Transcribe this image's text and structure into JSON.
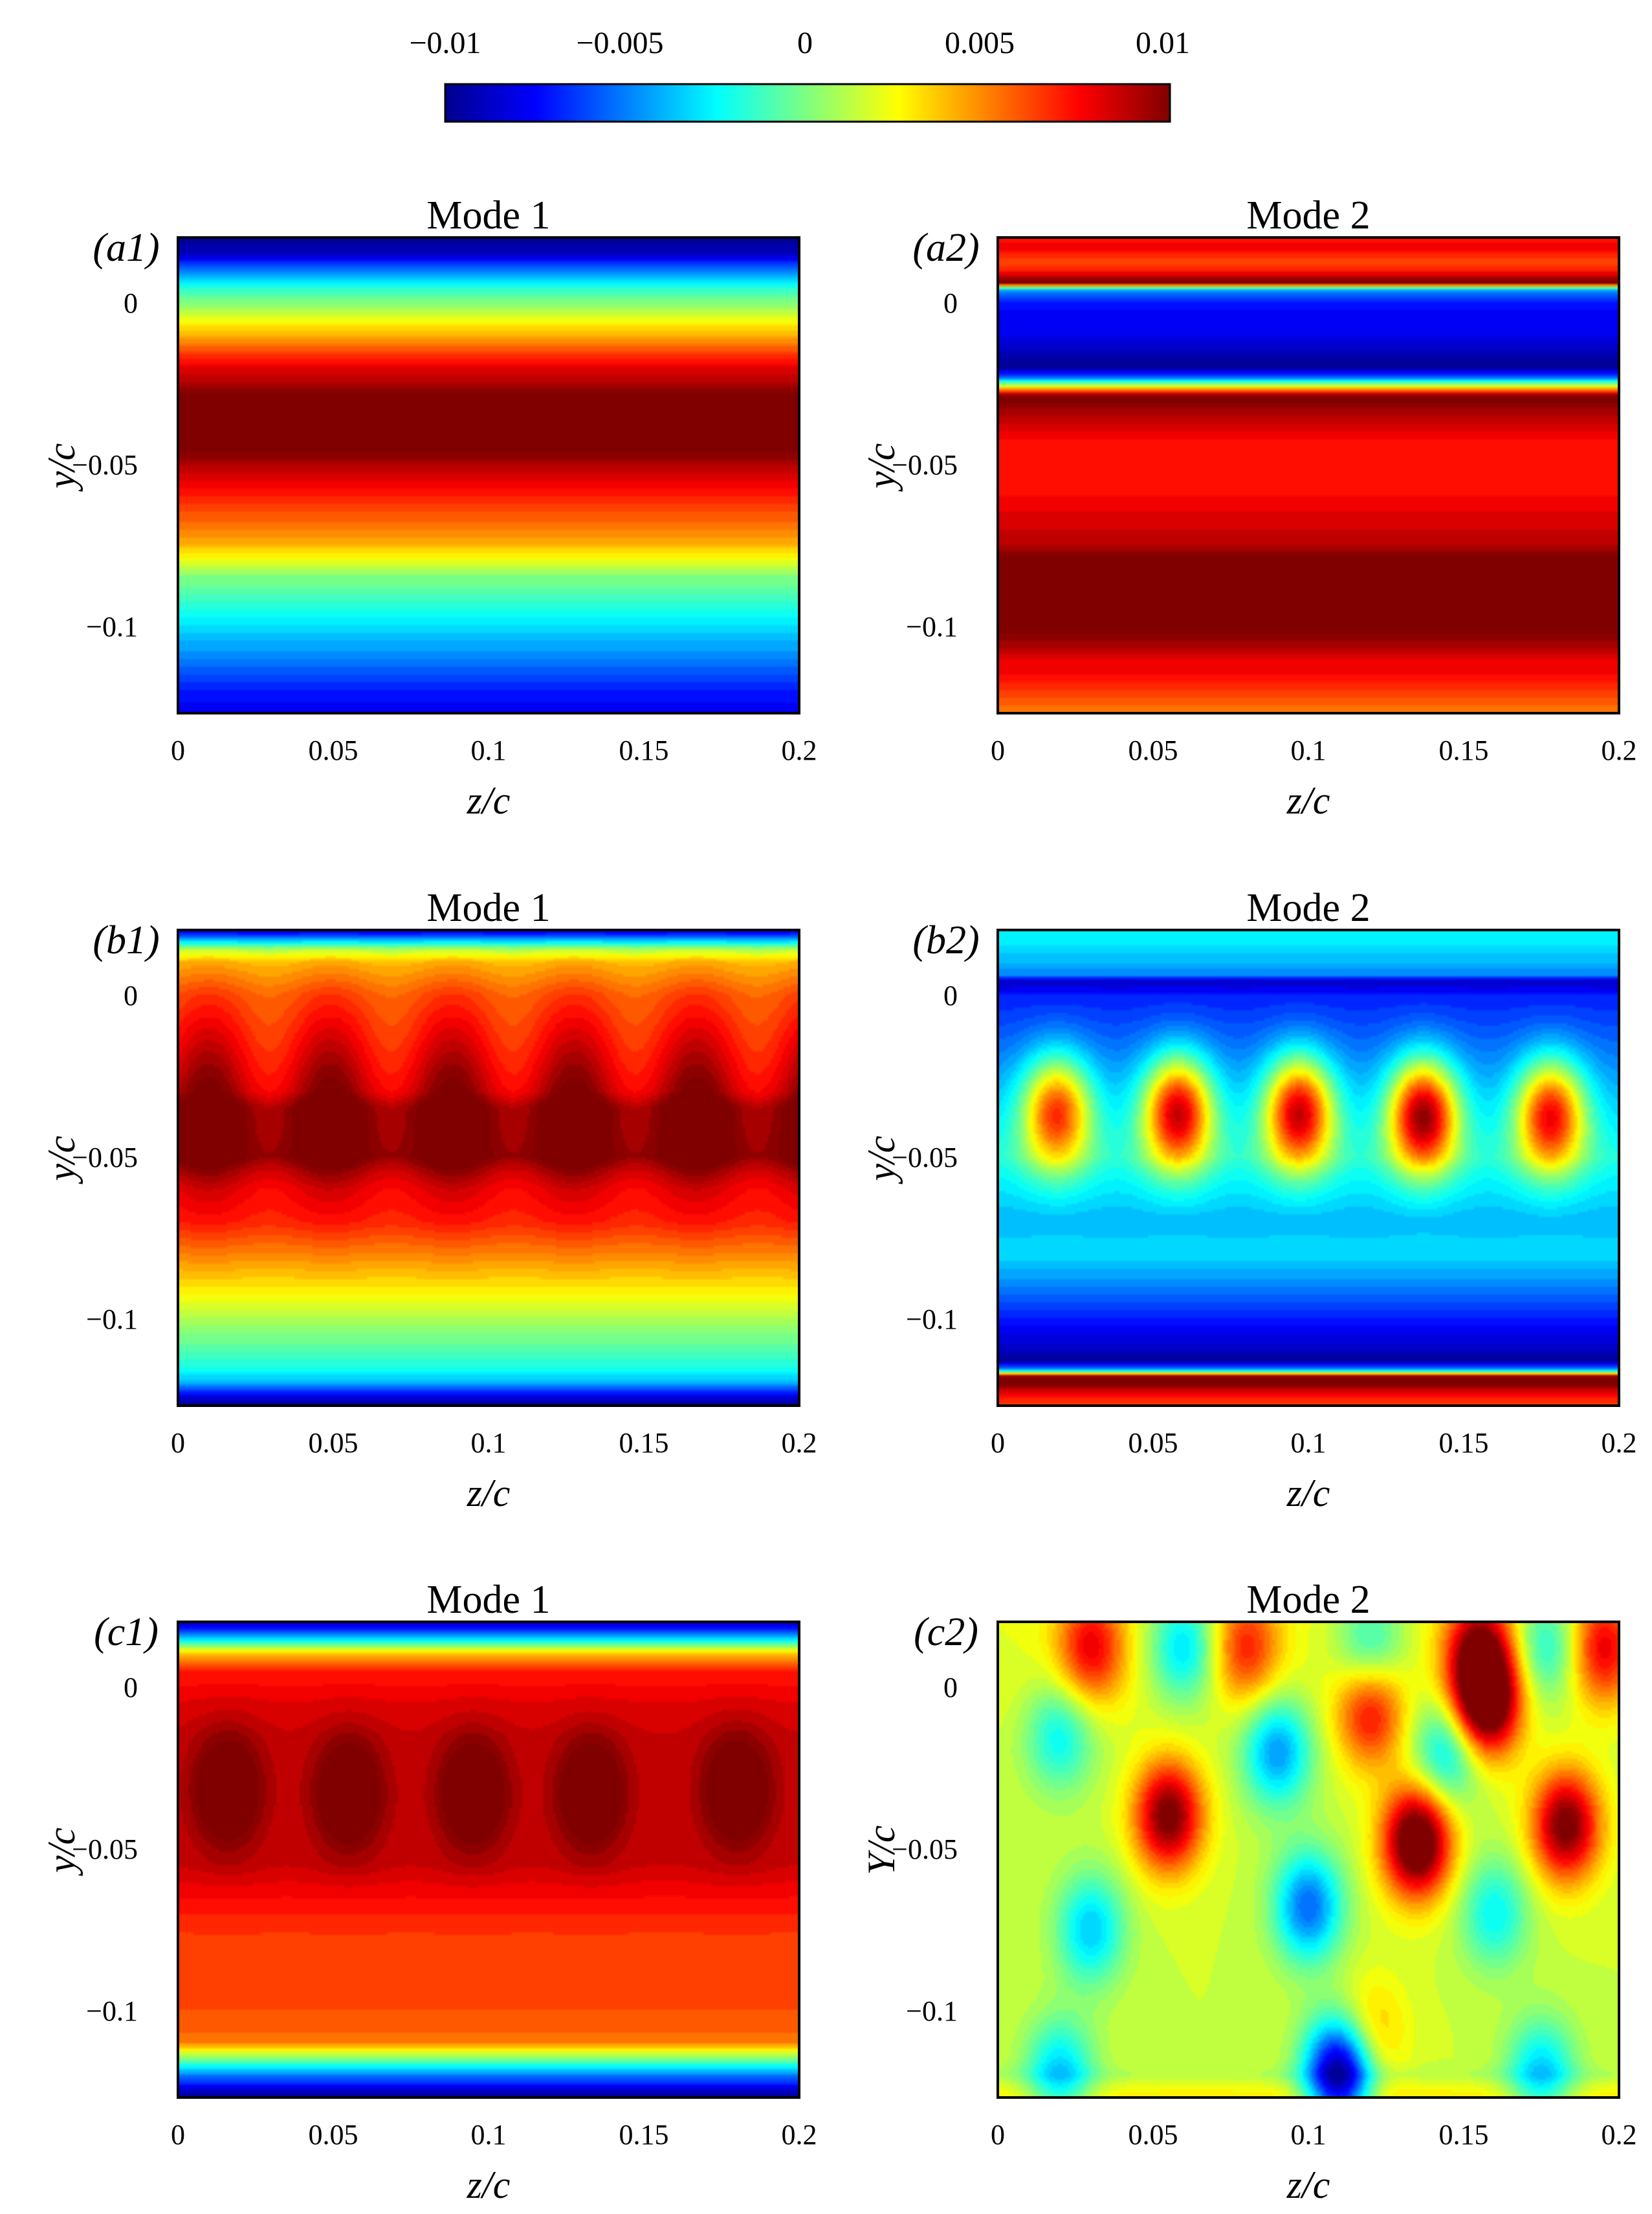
{
  "colorbar": {
    "tick_labels": [
      "−0.01",
      "−0.005",
      "0",
      "0.005",
      "0.01"
    ],
    "range": [
      -0.01,
      0.01
    ],
    "colormap": "jet",
    "stops": [
      "#00008f",
      "#0000ff",
      "#00ffff",
      "#ffff00",
      "#ff0000",
      "#800000"
    ]
  },
  "chart_data": [
    {
      "type": "heatmap",
      "panel_label": "(a1)",
      "title": "Mode 1",
      "xlabel": "z/c",
      "ylabel": "y/c",
      "xlim": [
        0,
        0.2
      ],
      "ylim": [
        -0.127,
        0.02
      ],
      "xticks": [
        "0",
        "0.05",
        "0.1",
        "0.15",
        "0.2"
      ],
      "yticks": [
        "0",
        "−0.05",
        "−0.1"
      ],
      "profile_y": [
        0.02,
        0.015,
        0.01,
        0.005,
        0.0,
        -0.005,
        -0.01,
        -0.015,
        -0.02,
        -0.025,
        -0.03,
        -0.035,
        -0.04,
        -0.045,
        -0.05,
        -0.055,
        -0.06,
        -0.065,
        -0.07,
        -0.075,
        -0.08,
        -0.085,
        -0.09,
        -0.095,
        -0.1,
        -0.105,
        -0.11,
        -0.115,
        -0.12,
        -0.127
      ],
      "profile_v": [
        -0.01,
        -0.009,
        -0.005,
        -0.002,
        0.0,
        0.002,
        0.004,
        0.006,
        0.008,
        0.009,
        0.0105,
        0.0105,
        0.0105,
        0.0105,
        0.009,
        0.008,
        0.007,
        0.006,
        0.005,
        0.004,
        0.002,
        0.0,
        -0.001,
        -0.002,
        -0.003,
        -0.004,
        -0.005,
        -0.006,
        -0.007,
        -0.008
      ]
    },
    {
      "type": "heatmap",
      "panel_label": "(a2)",
      "title": "Mode 2",
      "xlabel": "z/c",
      "ylabel": "y/c",
      "xlim": [
        0,
        0.2
      ],
      "ylim": [
        -0.127,
        0.02
      ],
      "xticks": [
        "0",
        "0.05",
        "0.1",
        "0.15",
        "0.2"
      ],
      "yticks": [
        "0",
        "−0.05",
        "−0.1"
      ],
      "profile_y": [
        0.02,
        0.017,
        0.013,
        0.01,
        0.006,
        0.004,
        0.002,
        0.0,
        -0.005,
        -0.01,
        -0.015,
        -0.02,
        -0.023,
        -0.026,
        -0.029,
        -0.033,
        -0.04,
        -0.045,
        -0.05,
        -0.06,
        -0.07,
        -0.075,
        -0.08,
        -0.09,
        -0.1,
        -0.105,
        -0.11,
        -0.115,
        -0.12,
        -0.127
      ],
      "profile_v": [
        0.007,
        0.008,
        0.006,
        0.007,
        0.0105,
        -0.004,
        -0.006,
        -0.007,
        -0.008,
        -0.008,
        -0.009,
        -0.01,
        -0.006,
        0.002,
        0.0105,
        0.0095,
        0.008,
        0.007,
        0.007,
        0.0075,
        0.0085,
        0.009,
        0.0105,
        0.0105,
        0.0105,
        0.0095,
        0.008,
        0.0075,
        0.0065,
        0.005
      ]
    },
    {
      "type": "heatmap",
      "panel_label": "(b1)",
      "title": "Mode 1",
      "xlabel": "z/c",
      "ylabel": "y/c",
      "xlim": [
        0,
        0.2
      ],
      "ylim": [
        -0.127,
        0.02
      ],
      "xticks": [
        "0",
        "0.05",
        "0.1",
        "0.15",
        "0.2"
      ],
      "yticks": [
        "0",
        "−0.05",
        "−0.1"
      ],
      "profile_y": [
        0.02,
        0.017,
        0.014,
        0.01,
        0.005,
        0.0,
        -0.005,
        -0.01,
        -0.015,
        -0.02,
        -0.025,
        -0.03,
        -0.035,
        -0.04,
        -0.05,
        -0.055,
        -0.06,
        -0.065,
        -0.07,
        -0.075,
        -0.08,
        -0.085,
        -0.09,
        -0.095,
        -0.1,
        -0.105,
        -0.11,
        -0.115,
        -0.12,
        -0.124,
        -0.127
      ],
      "profile_v": [
        -0.009,
        -0.004,
        0.001,
        0.004,
        0.005,
        0.006,
        0.0065,
        0.007,
        0.0075,
        0.008,
        0.0085,
        0.009,
        0.0105,
        0.0105,
        0.0105,
        0.009,
        0.008,
        0.0075,
        0.007,
        0.006,
        0.005,
        0.004,
        0.003,
        0.002,
        0.001,
        0.0,
        -0.001,
        -0.002,
        -0.004,
        -0.008,
        -0.01
      ],
      "undulation": 0.0015
    },
    {
      "type": "heatmap",
      "panel_label": "(b2)",
      "title": "Mode 2",
      "xlabel": "z/c",
      "ylabel": "y/c",
      "xlim": [
        0,
        0.2
      ],
      "ylim": [
        -0.127,
        0.02
      ],
      "xticks": [
        "0",
        "0.05",
        "0.1",
        "0.15",
        "0.2"
      ],
      "yticks": [
        "0",
        "−0.05",
        "−0.1"
      ],
      "profile_y": [
        0.02,
        0.015,
        0.01,
        0.006,
        0.004,
        0.0,
        -0.01,
        -0.02,
        -0.03,
        -0.04,
        -0.05,
        -0.06,
        -0.07,
        -0.08,
        -0.09,
        -0.095,
        -0.1,
        -0.105,
        -0.11,
        -0.113,
        -0.116,
        -0.118,
        -0.12,
        -0.123,
        -0.127
      ],
      "profile_v": [
        -0.003,
        -0.003,
        -0.004,
        -0.005,
        -0.009,
        -0.007,
        -0.006,
        -0.005,
        -0.004,
        -0.003,
        -0.002,
        -0.003,
        -0.004,
        -0.003,
        -0.005,
        -0.006,
        -0.007,
        -0.008,
        -0.009,
        -0.01,
        -0.004,
        0.0105,
        0.0105,
        0.008,
        0.006
      ],
      "blobs": [
        {
          "z": 0.019,
          "y": -0.036,
          "amp": 0.01
        },
        {
          "z": 0.058,
          "y": -0.036,
          "amp": 0.012
        },
        {
          "z": 0.097,
          "y": -0.036,
          "amp": 0.012
        },
        {
          "z": 0.137,
          "y": -0.037,
          "amp": 0.013
        },
        {
          "z": 0.178,
          "y": -0.037,
          "amp": 0.011
        }
      ]
    },
    {
      "type": "heatmap",
      "panel_label": "(c1)",
      "title": "Mode 1",
      "xlabel": "z/c",
      "ylabel": "y/c",
      "xlim": [
        0,
        0.2
      ],
      "ylim": [
        -0.127,
        0.02
      ],
      "xticks": [
        "0",
        "0.05",
        "0.1",
        "0.15",
        "0.2"
      ],
      "yticks": [
        "0",
        "−0.05",
        "−0.1"
      ],
      "profile_y": [
        0.02,
        0.017,
        0.014,
        0.01,
        0.005,
        0.0,
        -0.005,
        -0.015,
        -0.025,
        -0.035,
        -0.045,
        -0.055,
        -0.06,
        -0.065,
        -0.07,
        -0.08,
        -0.09,
        -0.1,
        -0.105,
        -0.11,
        -0.115,
        -0.12,
        -0.124,
        -0.127
      ],
      "profile_v": [
        -0.009,
        -0.006,
        -0.002,
        0.004,
        0.007,
        0.0075,
        0.008,
        0.0085,
        0.0085,
        0.0085,
        0.0085,
        0.0085,
        0.008,
        0.0075,
        0.007,
        0.0062,
        0.006,
        0.006,
        0.0058,
        0.005,
        0.0,
        -0.005,
        -0.008,
        -0.01
      ],
      "blobs": [
        {
          "z": 0.016,
          "y": -0.032,
          "amp": 0.0035
        },
        {
          "z": 0.055,
          "y": -0.033,
          "amp": 0.0035
        },
        {
          "z": 0.095,
          "y": -0.033,
          "amp": 0.0035
        },
        {
          "z": 0.133,
          "y": -0.033,
          "amp": 0.0035
        },
        {
          "z": 0.18,
          "y": -0.032,
          "amp": 0.0035
        }
      ]
    },
    {
      "type": "heatmap",
      "panel_label": "(c2)",
      "title": "Mode 2",
      "xlabel": "z/c",
      "ylabel": "Y/c",
      "xlim": [
        0,
        0.2
      ],
      "ylim": [
        -0.127,
        0.02
      ],
      "xticks": [
        "0",
        "0.05",
        "0.1",
        "0.15",
        "0.2"
      ],
      "yticks": [
        "0",
        "−0.05",
        "−0.1"
      ],
      "profile_y": [
        0.02,
        0.0,
        -0.02,
        -0.05,
        -0.08,
        -0.1,
        -0.11,
        -0.115,
        -0.12,
        -0.123,
        -0.127
      ],
      "profile_v": [
        0.002,
        0.002,
        0.0015,
        0.0015,
        0.0015,
        0.0015,
        0.0015,
        0.0015,
        0.001,
        0.002,
        0.003
      ],
      "blobs": [
        {
          "z": 0.03,
          "y": 0.012,
          "amp": 0.006
        },
        {
          "z": 0.08,
          "y": 0.012,
          "amp": 0.005
        },
        {
          "z": 0.155,
          "y": 0.012,
          "amp": 0.007
        },
        {
          "z": 0.195,
          "y": 0.012,
          "amp": 0.006
        },
        {
          "z": 0.06,
          "y": 0.012,
          "amp": -0.005
        },
        {
          "z": 0.12,
          "y": 0.012,
          "amp": -0.004
        },
        {
          "z": 0.177,
          "y": 0.012,
          "amp": -0.004
        },
        {
          "z": 0.157,
          "y": -0.005,
          "amp": 0.011
        },
        {
          "z": 0.12,
          "y": -0.008,
          "amp": 0.006
        },
        {
          "z": 0.02,
          "y": -0.015,
          "amp": -0.004
        },
        {
          "z": 0.09,
          "y": -0.02,
          "amp": -0.006
        },
        {
          "z": 0.145,
          "y": -0.02,
          "amp": -0.005
        },
        {
          "z": 0.055,
          "y": -0.04,
          "amp": 0.009
        },
        {
          "z": 0.135,
          "y": -0.048,
          "amp": 0.011
        },
        {
          "z": 0.183,
          "y": -0.043,
          "amp": 0.009
        },
        {
          "z": 0.1,
          "y": -0.068,
          "amp": -0.007
        },
        {
          "z": 0.03,
          "y": -0.075,
          "amp": -0.005
        },
        {
          "z": 0.16,
          "y": -0.07,
          "amp": -0.004
        },
        {
          "z": 0.12,
          "y": -0.108,
          "amp": 0.003
        },
        {
          "z": 0.11,
          "y": -0.12,
          "amp": -0.012
        },
        {
          "z": 0.02,
          "y": -0.12,
          "amp": -0.005
        },
        {
          "z": 0.175,
          "y": -0.12,
          "amp": -0.005
        }
      ]
    }
  ]
}
